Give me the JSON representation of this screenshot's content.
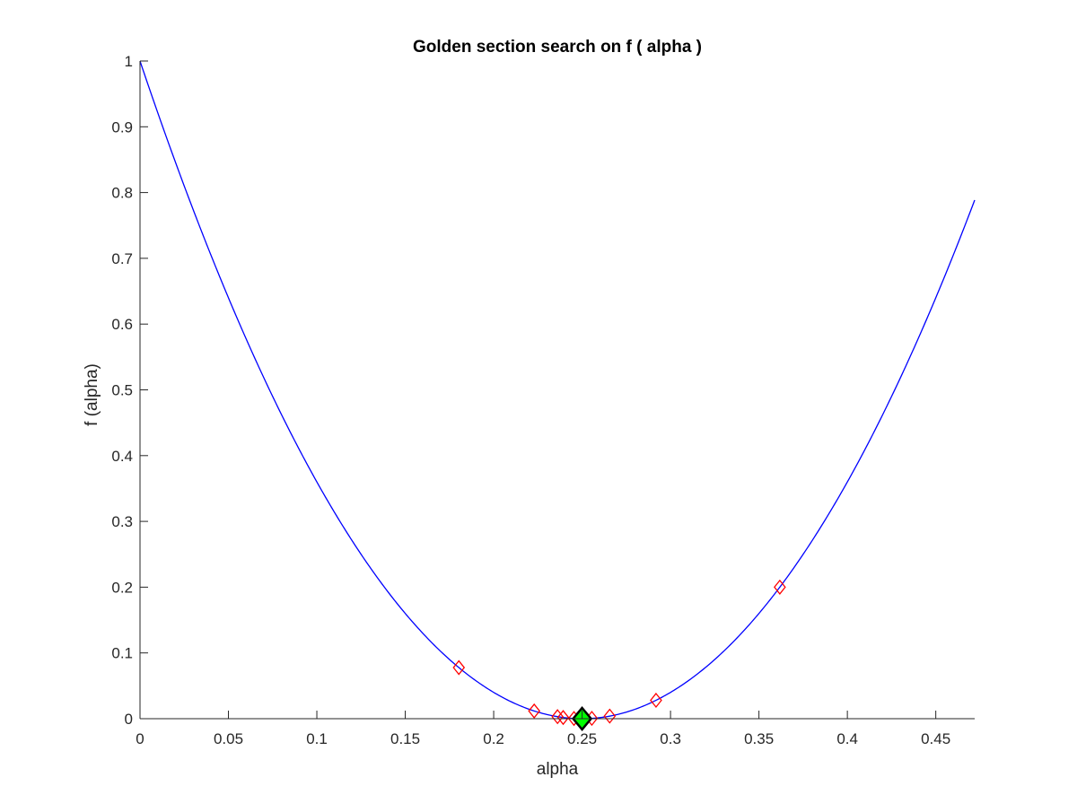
{
  "chart_data": {
    "type": "line",
    "title": "Golden section search on f ( alpha )",
    "xlabel": "alpha",
    "ylabel": "f (alpha)",
    "xlim": [
      0,
      0.472
    ],
    "ylim": [
      0,
      1
    ],
    "xticks": [
      0,
      0.05,
      0.1,
      0.15,
      0.2,
      0.25,
      0.3,
      0.35,
      0.4,
      0.45
    ],
    "xtick_labels": [
      "0",
      "0.05",
      "0.1",
      "0.15",
      "0.2",
      "0.25",
      "0.3",
      "0.35",
      "0.4",
      "0.45"
    ],
    "yticks": [
      0,
      0.1,
      0.2,
      0.3,
      0.4,
      0.5,
      0.6,
      0.7,
      0.8,
      0.9,
      1
    ],
    "ytick_labels": [
      "0",
      "0.1",
      "0.2",
      "0.3",
      "0.4",
      "0.5",
      "0.6",
      "0.7",
      "0.8",
      "0.9",
      "1"
    ],
    "grid": false,
    "box": false,
    "series": [
      {
        "style": "line",
        "color": "#0000ff",
        "function": "16*(alpha-0.25)^2",
        "x_range": [
          0,
          0.472
        ]
      },
      {
        "style": "markers",
        "marker": "diamond",
        "color": "#ff0000",
        "x": [
          0.1803,
          0.2918,
          0.2229,
          0.2393,
          0.2656,
          0.2492,
          0.2555,
          0.2454,
          0.2361
        ],
        "y": [
          0.0777,
          0.028,
          0.0117,
          0.0018,
          0.0039,
          0.0001,
          0.0005,
          0.0003,
          0.0031
        ]
      },
      {
        "style": "markers",
        "marker": "diamond",
        "color": "#00ff00",
        "edge_color": "#000000",
        "x": [
          0.25
        ],
        "y": [
          0.0
        ]
      },
      {
        "style": "markers",
        "marker": "diamond",
        "color": "#ff0000",
        "x": [
          0.3618
        ],
        "y": [
          0.2
        ]
      }
    ]
  }
}
